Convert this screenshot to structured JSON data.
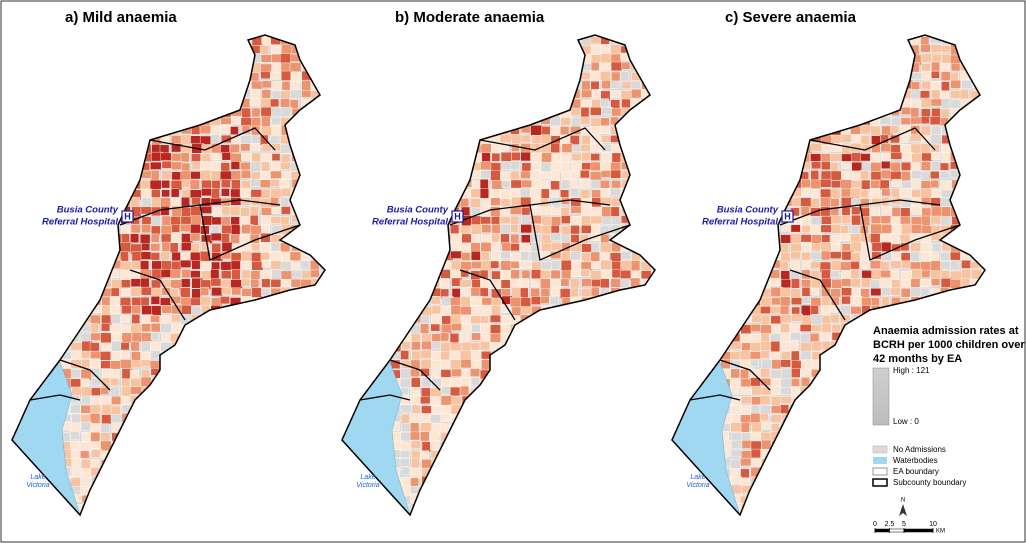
{
  "panels": [
    {
      "title": "a) Mild anaemia"
    },
    {
      "title": "b) Moderate anaemia"
    },
    {
      "title": "c) Severe anaemia"
    }
  ],
  "hospital": {
    "label_lines": [
      "Busia County",
      "Referral Hospital"
    ],
    "marker": "H"
  },
  "lake": {
    "label_lines": [
      "Lake",
      "Victoria"
    ]
  },
  "legend": {
    "title_lines": [
      "Anaemia admission rates at",
      "BCRH per 1000 children over",
      "42 months by EA"
    ],
    "high": "High : 121",
    "low": "Low : 0",
    "items": [
      "No Admissions",
      "Waterbodies",
      "EA boundary",
      "Subcounty boundary"
    ]
  },
  "north": "N",
  "scale": {
    "ticks": [
      0,
      2.5,
      5,
      10
    ],
    "unit": "KM"
  }
}
